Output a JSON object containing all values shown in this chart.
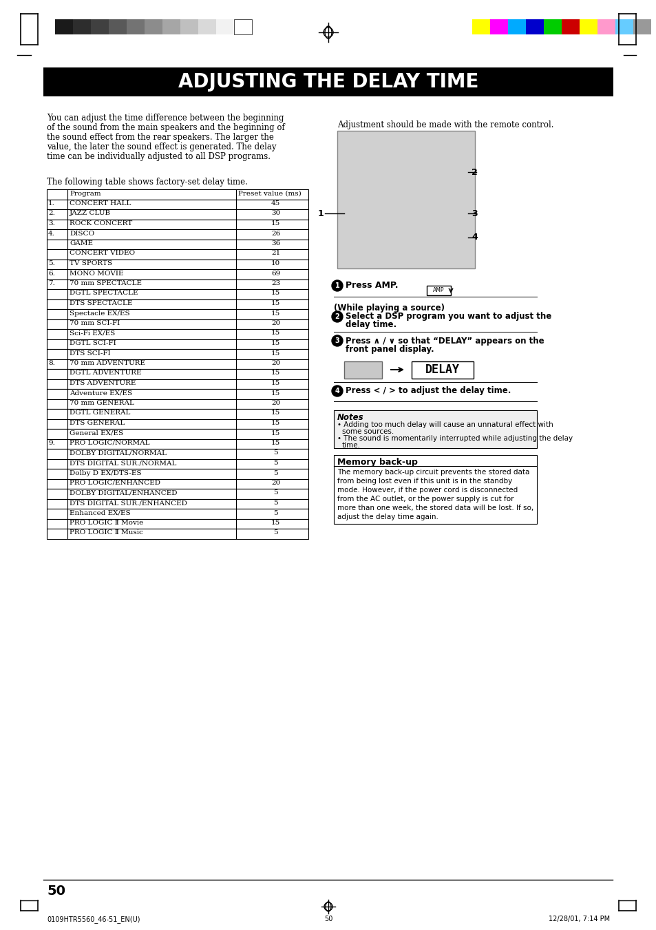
{
  "title": "ADJUSTING THE DELAY TIME",
  "bg_color": "#ffffff",
  "title_bg": "#000000",
  "title_fg": "#ffffff",
  "body_text_left": "You can adjust the time difference between the beginning\nof the sound from the main speakers and the beginning of\nthe sound effect from the rear speakers. The larger the\nvalue, the later the sound effect is generated. The delay\ntime can be individually adjusted to all DSP programs.",
  "body_text_right": "Adjustment should be made with the remote control.",
  "table_intro": "The following table shows factory-set delay time.",
  "table_header": [
    "Program",
    "Preset value (ms)"
  ],
  "table_rows": [
    [
      "1.",
      "CONCERT HALL",
      "45"
    ],
    [
      "2.",
      "JAZZ CLUB",
      "30"
    ],
    [
      "3.",
      "ROCK CONCERT",
      "15"
    ],
    [
      "4.",
      "DISCO",
      "26"
    ],
    [
      "",
      "GAME",
      "36"
    ],
    [
      "",
      "CONCERT VIDEO",
      "21"
    ],
    [
      "5.",
      "TV SPORTS",
      "10"
    ],
    [
      "6.",
      "MONO MOVIE",
      "69"
    ],
    [
      "7.",
      "70 mm SPECTACLE",
      "23"
    ],
    [
      "",
      "DGTL SPECTACLE",
      "15"
    ],
    [
      "",
      "DTS SPECTACLE",
      "15"
    ],
    [
      "",
      "Spectacle EX/ES",
      "15"
    ],
    [
      "",
      "70 mm SCI-FI",
      "20"
    ],
    [
      "",
      "Sci-Fi EX/ES",
      "15"
    ],
    [
      "",
      "DGTL SCI-FI",
      "15"
    ],
    [
      "",
      "DTS SCI-FI",
      "15"
    ],
    [
      "8.",
      "70 mm ADVENTURE",
      "20"
    ],
    [
      "",
      "DGTL ADVENTURE",
      "15"
    ],
    [
      "",
      "DTS ADVENTURE",
      "15"
    ],
    [
      "",
      "Adventure EX/ES",
      "15"
    ],
    [
      "",
      "70 mm GENERAL",
      "20"
    ],
    [
      "",
      "DGTL GENERAL",
      "15"
    ],
    [
      "",
      "DTS GENERAL",
      "15"
    ],
    [
      "",
      "General EX/ES",
      "15"
    ],
    [
      "9.",
      "PRO LOGIC/NORMAL",
      "15"
    ],
    [
      "",
      "DOLBY DIGITAL/NORMAL",
      "5"
    ],
    [
      "",
      "DTS DIGITAL SUR./NORMAL",
      "5"
    ],
    [
      "",
      "Dolby D EX/DTS-ES",
      "5"
    ],
    [
      "",
      "PRO LOGIC/ENHANCED",
      "20"
    ],
    [
      "",
      "DOLBY DIGITAL/ENHANCED",
      "5"
    ],
    [
      "",
      "DTS DIGITAL SUR./ENHANCED",
      "5"
    ],
    [
      "",
      "Enhanced EX/ES",
      "5"
    ],
    [
      "",
      "PRO LOGIC Ⅱ Movie",
      "15"
    ],
    [
      "",
      "PRO LOGIC Ⅱ Music",
      "5"
    ]
  ],
  "step1_bold": "Press AMP.",
  "step2_bold": "Select a DSP program you want to adjust the\ndelay time.",
  "step3_bold": "Press ∧ / ∨ so that “DELAY” appears on the\nfront panel display.",
  "step4_bold": "Press < / > to adjust the delay time.",
  "while_playing": "(While playing a source)",
  "notes_title": "Notes",
  "note1": "Adding too much delay will cause an unnatural effect with\nsome sources.",
  "note2": "The sound is momentarily interrupted while adjusting the delay\ntime.",
  "memory_title": "Memory back-up",
  "memory_text": "The memory back-up circuit prevents the stored data\nfrom being lost even if this unit is in the standby\nmode. However, if the power cord is disconnected\nfrom the AC outlet, or the power supply is cut for\nmore than one week, the stored data will be lost. If so,\nadjust the delay time again.",
  "page_number": "50",
  "footer_left": "0109HTR5560_46-51_EN(U)",
  "footer_center": "50",
  "footer_right": "12/28/01, 7:14 PM",
  "color_bars_left": [
    "#1a1a1a",
    "#2d2d2d",
    "#404040",
    "#595959",
    "#737373",
    "#8c8c8c",
    "#a6a6a6",
    "#bfbfbf",
    "#d9d9d9",
    "#f2f2f2"
  ],
  "color_bars_right": [
    "#ffff00",
    "#ff00ff",
    "#00aaff",
    "#0000cc",
    "#00cc00",
    "#cc0000",
    "#ffff00",
    "#ff99cc",
    "#66ccff",
    "#999999"
  ]
}
